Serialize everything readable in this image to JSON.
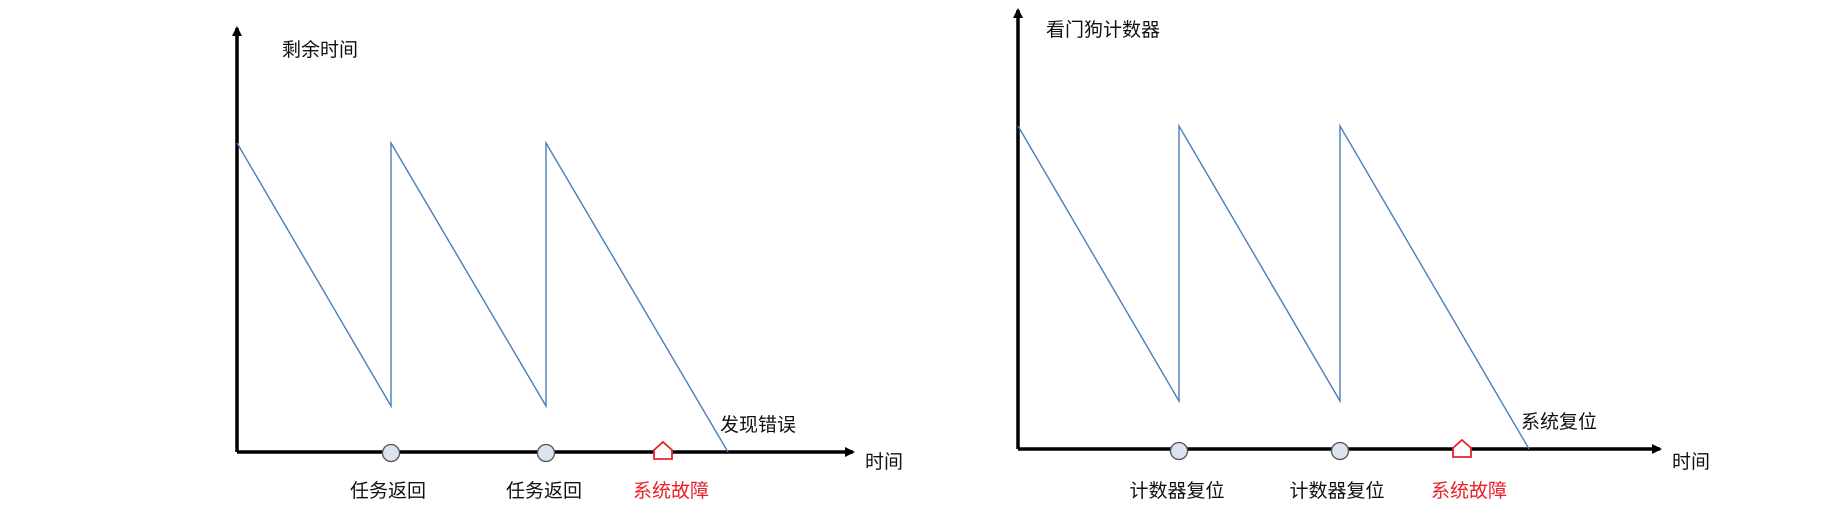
{
  "colors": {
    "axis": "#000000",
    "wave": "#4a7ebb",
    "event_marker_fill": "#dbe3f0",
    "event_marker_stroke": "#555555",
    "fault": "#e8202a"
  },
  "diagrams": [
    {
      "y_axis_label": "剩余时间",
      "x_axis_label": "时间",
      "end_label": "发现错误",
      "events": [
        {
          "label": "任务返回",
          "kind": "circle",
          "icon": "circle-marker-icon"
        },
        {
          "label": "任务返回",
          "kind": "circle",
          "icon": "circle-marker-icon"
        },
        {
          "label": "系统故障",
          "kind": "house",
          "icon": "fault-house-icon"
        }
      ]
    },
    {
      "y_axis_label": "看门狗计数器",
      "x_axis_label": "时间",
      "end_label": "系统复位",
      "events": [
        {
          "label": "计数器复位",
          "kind": "circle",
          "icon": "circle-marker-icon"
        },
        {
          "label": "计数器复位",
          "kind": "circle",
          "icon": "circle-marker-icon"
        },
        {
          "label": "系统故障",
          "kind": "house",
          "icon": "fault-house-icon"
        }
      ]
    }
  ]
}
